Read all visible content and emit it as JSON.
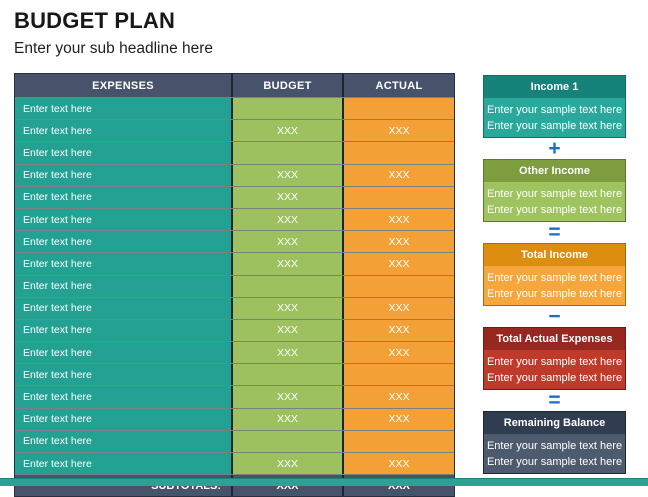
{
  "page": {
    "title": "BUDGET PLAN",
    "subtitle": "Enter your sub headline here"
  },
  "table": {
    "headers": [
      "EXPENSES",
      "BUDGET",
      "ACTUAL"
    ],
    "rows": [
      {
        "expense": "Enter text here",
        "budget": "",
        "actual": ""
      },
      {
        "expense": "Enter text here",
        "budget": "XXX",
        "actual": "XXX"
      },
      {
        "expense": "Enter text here",
        "budget": "",
        "actual": ""
      },
      {
        "expense": "Enter text here",
        "budget": "XXX",
        "actual": "XXX"
      },
      {
        "expense": "Enter text here",
        "budget": "XXX",
        "actual": ""
      },
      {
        "expense": "Enter text here",
        "budget": "XXX",
        "actual": "XXX"
      },
      {
        "expense": "Enter text here",
        "budget": "XXX",
        "actual": "XXX"
      },
      {
        "expense": "Enter text here",
        "budget": "XXX",
        "actual": "XXX"
      },
      {
        "expense": "Enter text here",
        "budget": "",
        "actual": ""
      },
      {
        "expense": "Enter text here",
        "budget": "XXX",
        "actual": "XXX"
      },
      {
        "expense": "Enter text here",
        "budget": "XXX",
        "actual": "XXX"
      },
      {
        "expense": "Enter text here",
        "budget": "XXX",
        "actual": "XXX"
      },
      {
        "expense": "Enter text here",
        "budget": "",
        "actual": ""
      },
      {
        "expense": "Enter text here",
        "budget": "XXX",
        "actual": "XXX"
      },
      {
        "expense": "Enter text here",
        "budget": "XXX",
        "actual": "XXX"
      },
      {
        "expense": "Enter text here",
        "budget": "",
        "actual": ""
      },
      {
        "expense": "Enter text here",
        "budget": "XXX",
        "actual": "XXX"
      }
    ],
    "subtotals": {
      "label": "SUBTOTALS:",
      "budget": "XXX",
      "actual": "XXX"
    }
  },
  "flow": {
    "boxes": [
      {
        "title": "Income 1",
        "lines": [
          "Enter your sample text here",
          "Enter your sample text here"
        ]
      },
      {
        "title": "Other Income",
        "lines": [
          "Enter your sample text here",
          "Enter your sample text here"
        ]
      },
      {
        "title": "Total Income",
        "lines": [
          "Enter your sample text here",
          "Enter your sample text here"
        ]
      },
      {
        "title": "Total Actual Expenses",
        "lines": [
          "Enter your sample text here",
          "Enter your sample text here"
        ]
      },
      {
        "title": "Remaining Balance",
        "lines": [
          "Enter your sample text here",
          "Enter your sample text here"
        ]
      }
    ],
    "operators": [
      "+",
      "=",
      "−",
      "="
    ]
  },
  "colors": {
    "table_header_bg": "#47536a",
    "expenses_cell_bg": "#23a294",
    "budget_cell_bg": "#9cc15e",
    "actual_cell_bg": "#f3a137",
    "subtotals_bg": "#47536a",
    "income1_header": "#15837a",
    "income1_body": "#2aa89c",
    "other_income_header": "#7e9d3e",
    "other_income_body": "#9ec45f",
    "total_income_header": "#dd8d10",
    "total_income_body": "#f5a63c",
    "total_actual_expenses_header": "#962721",
    "total_actual_expenses_body": "#c03a2c",
    "remaining_balance_header": "#303c4f",
    "remaining_balance_body": "#4d5b6f",
    "operator_blue": "#1b6fc4",
    "bottom_bar": "#2aa294",
    "text_on_cells": "#ffffff"
  }
}
